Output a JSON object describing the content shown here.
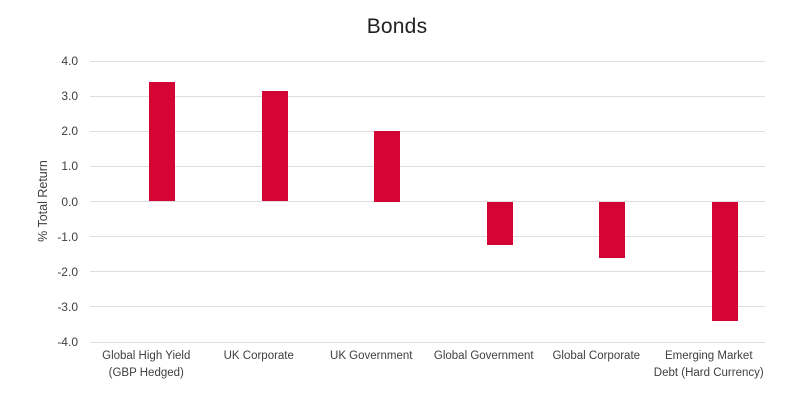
{
  "chart_data": {
    "type": "bar",
    "title": "Bonds",
    "xlabel": "",
    "ylabel": "% Total Return",
    "categories": [
      "Global High Yield (GBP Hedged)",
      "UK Corporate",
      "UK Government",
      "Global Government",
      "Global Corporate",
      "Emerging Market Debt (Hard Currency)"
    ],
    "values": [
      3.4,
      3.15,
      2.0,
      -1.25,
      -1.6,
      -3.4
    ],
    "ylim": [
      -4.0,
      4.0
    ],
    "ytick_step": 1.0,
    "ytick_labels": [
      "4.0",
      "3.0",
      "2.0",
      "1.0",
      "0.0",
      "-1.0",
      "-2.0",
      "-3.0",
      "-4.0"
    ],
    "grid": true,
    "legend": false,
    "bar_color": "#d40535",
    "gridline_color": "#dedede",
    "title_color": "#212121",
    "axis_text_color": "#404040"
  }
}
